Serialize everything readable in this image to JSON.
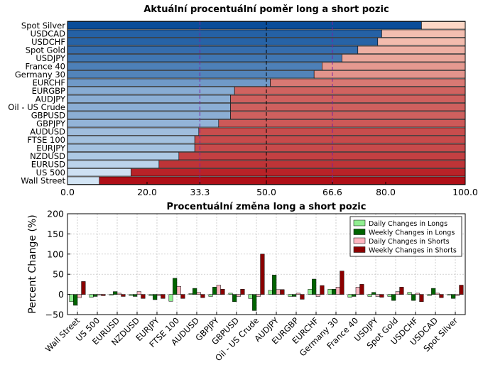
{
  "chart_data": [
    {
      "type": "bar",
      "orientation": "horizontal",
      "stacked": true,
      "title": "Aktuální procentuální poměr long a short pozic",
      "categories": [
        "Spot Silver",
        "USDCAD",
        "USDCHF",
        "Spot Gold",
        "USDJPY",
        "France 40",
        "Germany 30",
        "EURCHF",
        "EURGBP",
        "AUDJPY",
        "Oil - US Crude",
        "GBPUSD",
        "GBPJPY",
        "AUDUSD",
        "FTSE 100",
        "EURJPY",
        "NZDUSD",
        "EURUSD",
        "US 500",
        "Wall Street"
      ],
      "long_pct": [
        89,
        79,
        78,
        73,
        69,
        64,
        62,
        51,
        42,
        41,
        41,
        41,
        38,
        33,
        32,
        32,
        28,
        23,
        16,
        8
      ],
      "xlim": [
        0,
        100
      ],
      "xticks": [
        "0.0",
        "20.0",
        "33.3",
        "50.0",
        "66.6",
        "80.0",
        "100.0"
      ],
      "reference_lines": [
        33.3,
        50.0,
        66.6
      ],
      "grid": false
    },
    {
      "type": "bar",
      "title": "Procentuální změna long a short pozic",
      "ylabel": "Percent Change (%)",
      "ylim": [
        -50,
        200
      ],
      "yticks": [
        "−50",
        "0",
        "50",
        "100",
        "150",
        "200"
      ],
      "grid": true,
      "legend": "top-right",
      "categories": [
        "Wall Street",
        "US 500",
        "EURUSD",
        "NZDUSD",
        "EURJPY",
        "FTSE 100",
        "AUDUSD",
        "GBPJPY",
        "GBPUSD",
        "Oil - US Crude",
        "AUDJPY",
        "EURGBP",
        "EURCHF",
        "Germany 30",
        "France 40",
        "USDJPY",
        "Spot Gold",
        "USDCHF",
        "USDCAD",
        "Spot Silver"
      ],
      "series": [
        {
          "name": "Daily Changes in Longs",
          "color": "#90ee90",
          "values": [
            -18,
            -7,
            -2,
            -3,
            -3,
            -17,
            2,
            -5,
            3,
            -10,
            10,
            -5,
            13,
            13,
            -7,
            -5,
            -5,
            5,
            -3,
            -2
          ]
        },
        {
          "name": "Weekly Changes in Longs",
          "color": "#006400",
          "values": [
            -27,
            -5,
            7,
            -5,
            -13,
            40,
            15,
            18,
            -18,
            -40,
            48,
            -5,
            38,
            13,
            -5,
            5,
            -15,
            -15,
            15,
            -10
          ]
        },
        {
          "name": "Daily Changes in Shorts",
          "color": "#ffb6c1",
          "values": [
            -8,
            -2,
            3,
            7,
            -3,
            20,
            5,
            23,
            -5,
            -5,
            12,
            3,
            -5,
            18,
            18,
            -5,
            7,
            3,
            3,
            -3
          ]
        },
        {
          "name": "Weekly Changes in Shorts",
          "color": "#8b0000",
          "values": [
            32,
            -3,
            -5,
            -10,
            -10,
            -10,
            -8,
            13,
            13,
            100,
            12,
            -12,
            22,
            58,
            25,
            -7,
            18,
            -18,
            -8,
            23
          ]
        }
      ]
    }
  ]
}
